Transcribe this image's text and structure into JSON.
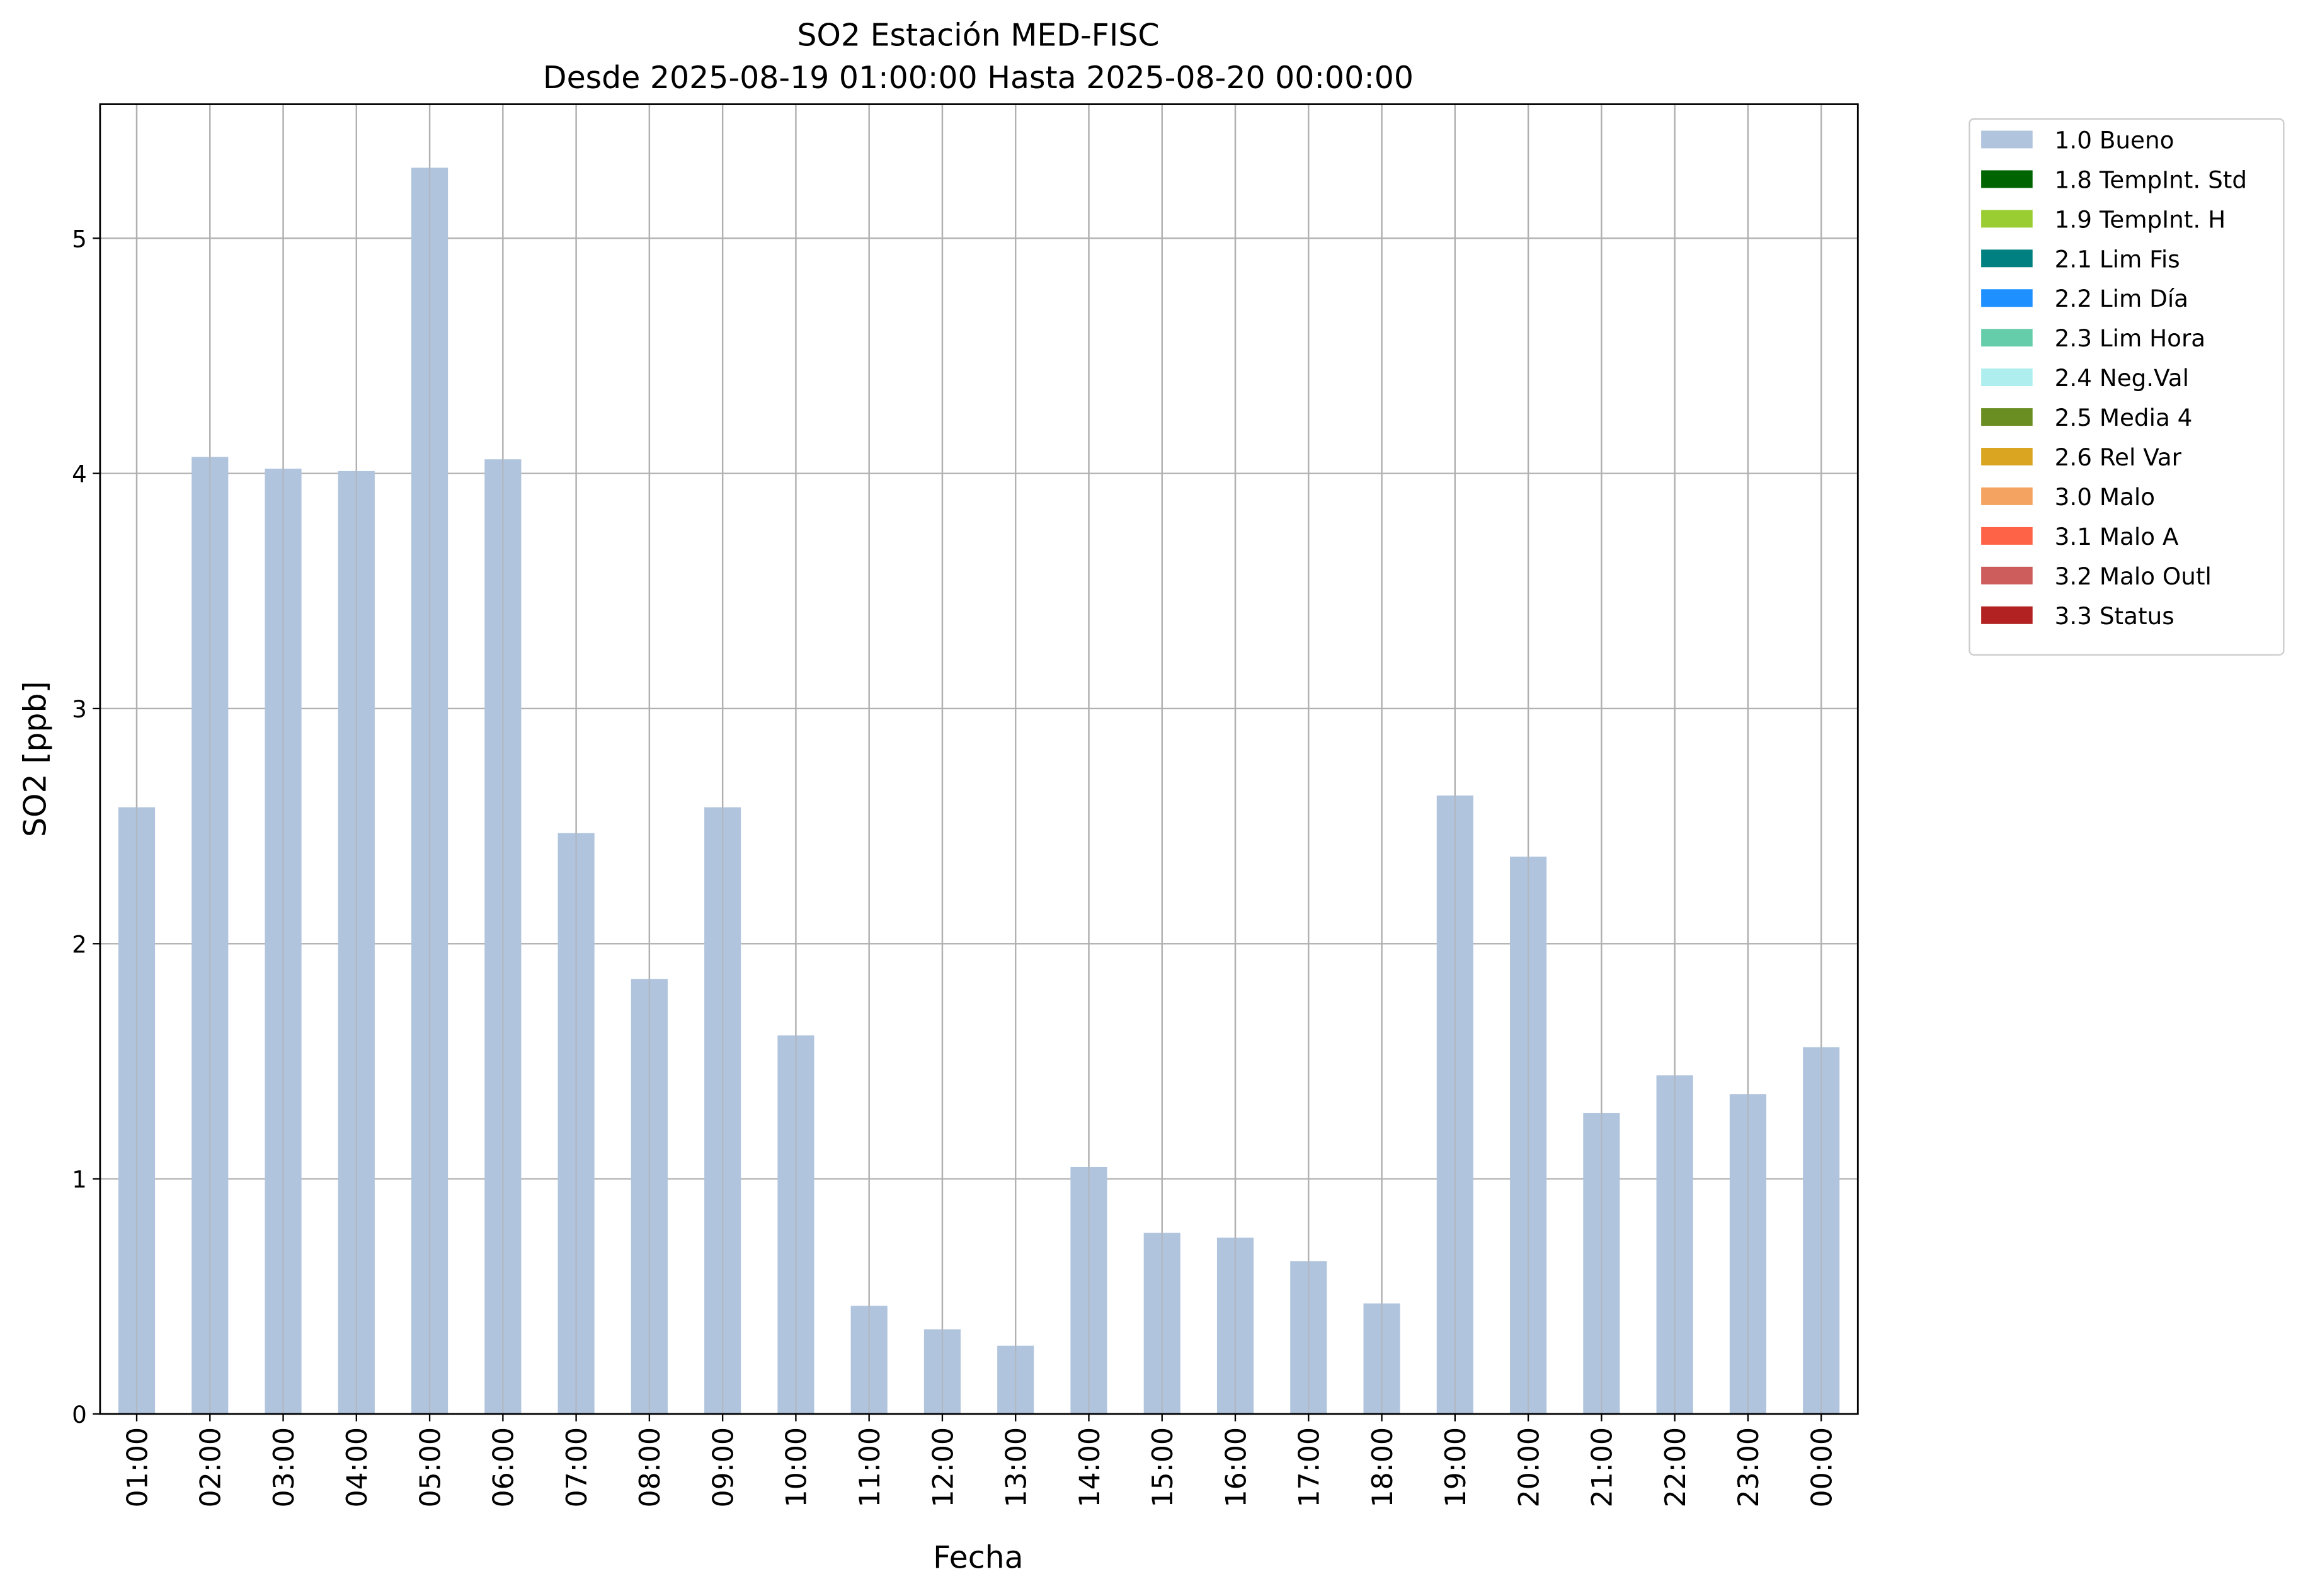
{
  "chart_data": {
    "type": "bar",
    "title": "SO2 Estación MED-FISC",
    "subtitle": "Desde 2025-08-19 01:00:00 Hasta 2025-08-20 00:00:00",
    "x_label": "Fecha",
    "y_label": "SO2 [ppb]",
    "categories": [
      "01:00",
      "02:00",
      "03:00",
      "04:00",
      "05:00",
      "06:00",
      "07:00",
      "08:00",
      "09:00",
      "10:00",
      "11:00",
      "12:00",
      "13:00",
      "14:00",
      "15:00",
      "16:00",
      "17:00",
      "18:00",
      "19:00",
      "20:00",
      "21:00",
      "22:00",
      "23:00",
      "00:00"
    ],
    "series": [
      {
        "name": "1.0 Bueno",
        "color": "#b0c4de",
        "values": [
          2.58,
          4.07,
          4.02,
          4.01,
          5.3,
          4.06,
          2.47,
          1.85,
          2.58,
          1.61,
          0.46,
          0.36,
          0.29,
          1.05,
          0.77,
          0.75,
          0.65,
          0.47,
          2.63,
          2.37,
          1.28,
          1.44,
          1.36,
          1.56
        ]
      },
      {
        "name": "1.8 TempInt. Std",
        "color": "#006400",
        "values": [
          null,
          null,
          null,
          null,
          null,
          null,
          null,
          null,
          null,
          null,
          null,
          null,
          null,
          null,
          null,
          null,
          null,
          null,
          null,
          null,
          null,
          null,
          null,
          null
        ]
      },
      {
        "name": "1.9 TempInt. H",
        "color": "#9acd32",
        "values": [
          null,
          null,
          null,
          null,
          null,
          null,
          null,
          null,
          null,
          null,
          null,
          null,
          null,
          null,
          null,
          null,
          null,
          null,
          null,
          null,
          null,
          null,
          null,
          null
        ]
      },
      {
        "name": "2.1 Lim Fis",
        "color": "#008080",
        "values": [
          null,
          null,
          null,
          null,
          null,
          null,
          null,
          null,
          null,
          null,
          null,
          null,
          null,
          null,
          null,
          null,
          null,
          null,
          null,
          null,
          null,
          null,
          null,
          null
        ]
      },
      {
        "name": "2.2 Lim Día",
        "color": "#1e90ff",
        "values": [
          null,
          null,
          null,
          null,
          null,
          null,
          null,
          null,
          null,
          null,
          null,
          null,
          null,
          null,
          null,
          null,
          null,
          null,
          null,
          null,
          null,
          null,
          null,
          null
        ]
      },
      {
        "name": "2.3 Lim Hora",
        "color": "#66cdaa",
        "values": [
          null,
          null,
          null,
          null,
          null,
          null,
          null,
          null,
          null,
          null,
          null,
          null,
          null,
          null,
          null,
          null,
          null,
          null,
          null,
          null,
          null,
          null,
          null,
          null
        ]
      },
      {
        "name": "2.4 Neg.Val",
        "color": "#afeeee",
        "values": [
          null,
          null,
          null,
          null,
          null,
          null,
          null,
          null,
          null,
          null,
          null,
          null,
          null,
          null,
          null,
          null,
          null,
          null,
          null,
          null,
          null,
          null,
          null,
          null
        ]
      },
      {
        "name": "2.5 Media 4",
        "color": "#6b8e23",
        "values": [
          null,
          null,
          null,
          null,
          null,
          null,
          null,
          null,
          null,
          null,
          null,
          null,
          null,
          null,
          null,
          null,
          null,
          null,
          null,
          null,
          null,
          null,
          null,
          null
        ]
      },
      {
        "name": "2.6 Rel Var",
        "color": "#daa520",
        "values": [
          null,
          null,
          null,
          null,
          null,
          null,
          null,
          null,
          null,
          null,
          null,
          null,
          null,
          null,
          null,
          null,
          null,
          null,
          null,
          null,
          null,
          null,
          null,
          null
        ]
      },
      {
        "name": "3.0 Malo",
        "color": "#f4a460",
        "values": [
          null,
          null,
          null,
          null,
          null,
          null,
          null,
          null,
          null,
          null,
          null,
          null,
          null,
          null,
          null,
          null,
          null,
          null,
          null,
          null,
          null,
          null,
          null,
          null
        ]
      },
      {
        "name": "3.1 Malo A",
        "color": "#ff6347",
        "values": [
          null,
          null,
          null,
          null,
          null,
          null,
          null,
          null,
          null,
          null,
          null,
          null,
          null,
          null,
          null,
          null,
          null,
          null,
          null,
          null,
          null,
          null,
          null,
          null
        ]
      },
      {
        "name": "3.2 Malo Outl",
        "color": "#cd5c5c",
        "values": [
          null,
          null,
          null,
          null,
          null,
          null,
          null,
          null,
          null,
          null,
          null,
          null,
          null,
          null,
          null,
          null,
          null,
          null,
          null,
          null,
          null,
          null,
          null,
          null
        ]
      },
      {
        "name": "3.3 Status",
        "color": "#b22222",
        "values": [
          null,
          null,
          null,
          null,
          null,
          null,
          null,
          null,
          null,
          null,
          null,
          null,
          null,
          null,
          null,
          null,
          null,
          null,
          null,
          null,
          null,
          null,
          null,
          null
        ]
      }
    ],
    "ylim": [
      0,
      5.57
    ],
    "yticks": [
      0,
      1,
      2,
      3,
      4,
      5
    ],
    "grid": true,
    "legend": "outside-upper-right"
  }
}
